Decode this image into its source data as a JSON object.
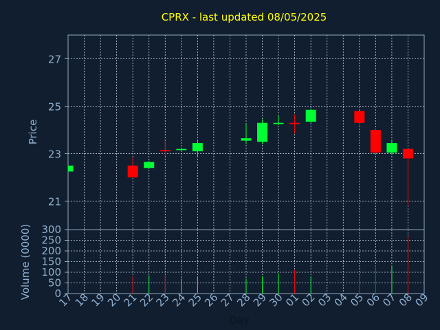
{
  "colors": {
    "background": "#111e2f",
    "title": "#ffff00",
    "axis_text": "#8fb0d0",
    "up": "#00ff33",
    "down": "#ff0000",
    "grid": "#c8d4e4",
    "frame": "#8fa8c4"
  },
  "chart_data": {
    "type": "candlestick",
    "title": "CPRX - last updated 08/05/2025",
    "xlabel": "Day",
    "ylabel": "Price",
    "volume_label": "Volume (0000)",
    "price_ylim": [
      19.8,
      28.0
    ],
    "price_ticks": [
      "21",
      "23",
      "25",
      "27"
    ],
    "volume_ylim": [
      0,
      300
    ],
    "volume_ticks": [
      "0",
      "50",
      "100",
      "150",
      "200",
      "250",
      "300"
    ],
    "grid": true,
    "x_ticks": [
      "17",
      "18",
      "19",
      "20",
      "21",
      "22",
      "23",
      "24",
      "25",
      "26",
      "27",
      "28",
      "29",
      "30",
      "01",
      "02",
      "03",
      "04",
      "05",
      "06",
      "07",
      "08",
      "09"
    ],
    "candles": [
      {
        "day": "17",
        "open": 22.25,
        "close": 22.5,
        "high": 22.5,
        "low": 22.25,
        "volume": 0
      },
      {
        "day": "21",
        "open": 22.5,
        "close": 22.0,
        "high": 22.85,
        "low": 22.0,
        "volume": 80
      },
      {
        "day": "22",
        "open": 22.4,
        "close": 22.65,
        "high": 22.7,
        "low": 22.35,
        "volume": 85
      },
      {
        "day": "23",
        "open": 23.15,
        "close": 23.1,
        "high": 23.55,
        "low": 22.9,
        "volume": 85
      },
      {
        "day": "24",
        "open": 23.15,
        "close": 23.2,
        "high": 23.25,
        "low": 23.1,
        "volume": 70
      },
      {
        "day": "25",
        "open": 23.1,
        "close": 23.45,
        "high": 23.55,
        "low": 22.9,
        "volume": 75
      },
      {
        "day": "28",
        "open": 23.55,
        "close": 23.65,
        "high": 24.25,
        "low": 23.4,
        "volume": 70
      },
      {
        "day": "29",
        "open": 23.5,
        "close": 24.3,
        "high": 24.45,
        "low": 23.4,
        "volume": 80
      },
      {
        "day": "30",
        "open": 24.25,
        "close": 24.3,
        "high": 24.6,
        "low": 24.2,
        "volume": 95
      },
      {
        "day": "01",
        "open": 24.3,
        "close": 24.25,
        "high": 24.65,
        "low": 23.85,
        "volume": 110
      },
      {
        "day": "02",
        "open": 24.35,
        "close": 24.85,
        "high": 24.9,
        "low": 24.3,
        "volume": 80
      },
      {
        "day": "05",
        "open": 24.8,
        "close": 24.3,
        "high": 24.8,
        "low": 24.15,
        "volume": 85
      },
      {
        "day": "06",
        "open": 24.0,
        "close": 23.05,
        "high": 24.05,
        "low": 23.0,
        "volume": 130
      },
      {
        "day": "07",
        "open": 23.05,
        "close": 23.45,
        "high": 23.6,
        "low": 22.95,
        "volume": 130
      },
      {
        "day": "08",
        "open": 23.2,
        "close": 22.8,
        "high": 23.2,
        "low": 20.8,
        "volume": 270
      }
    ]
  }
}
